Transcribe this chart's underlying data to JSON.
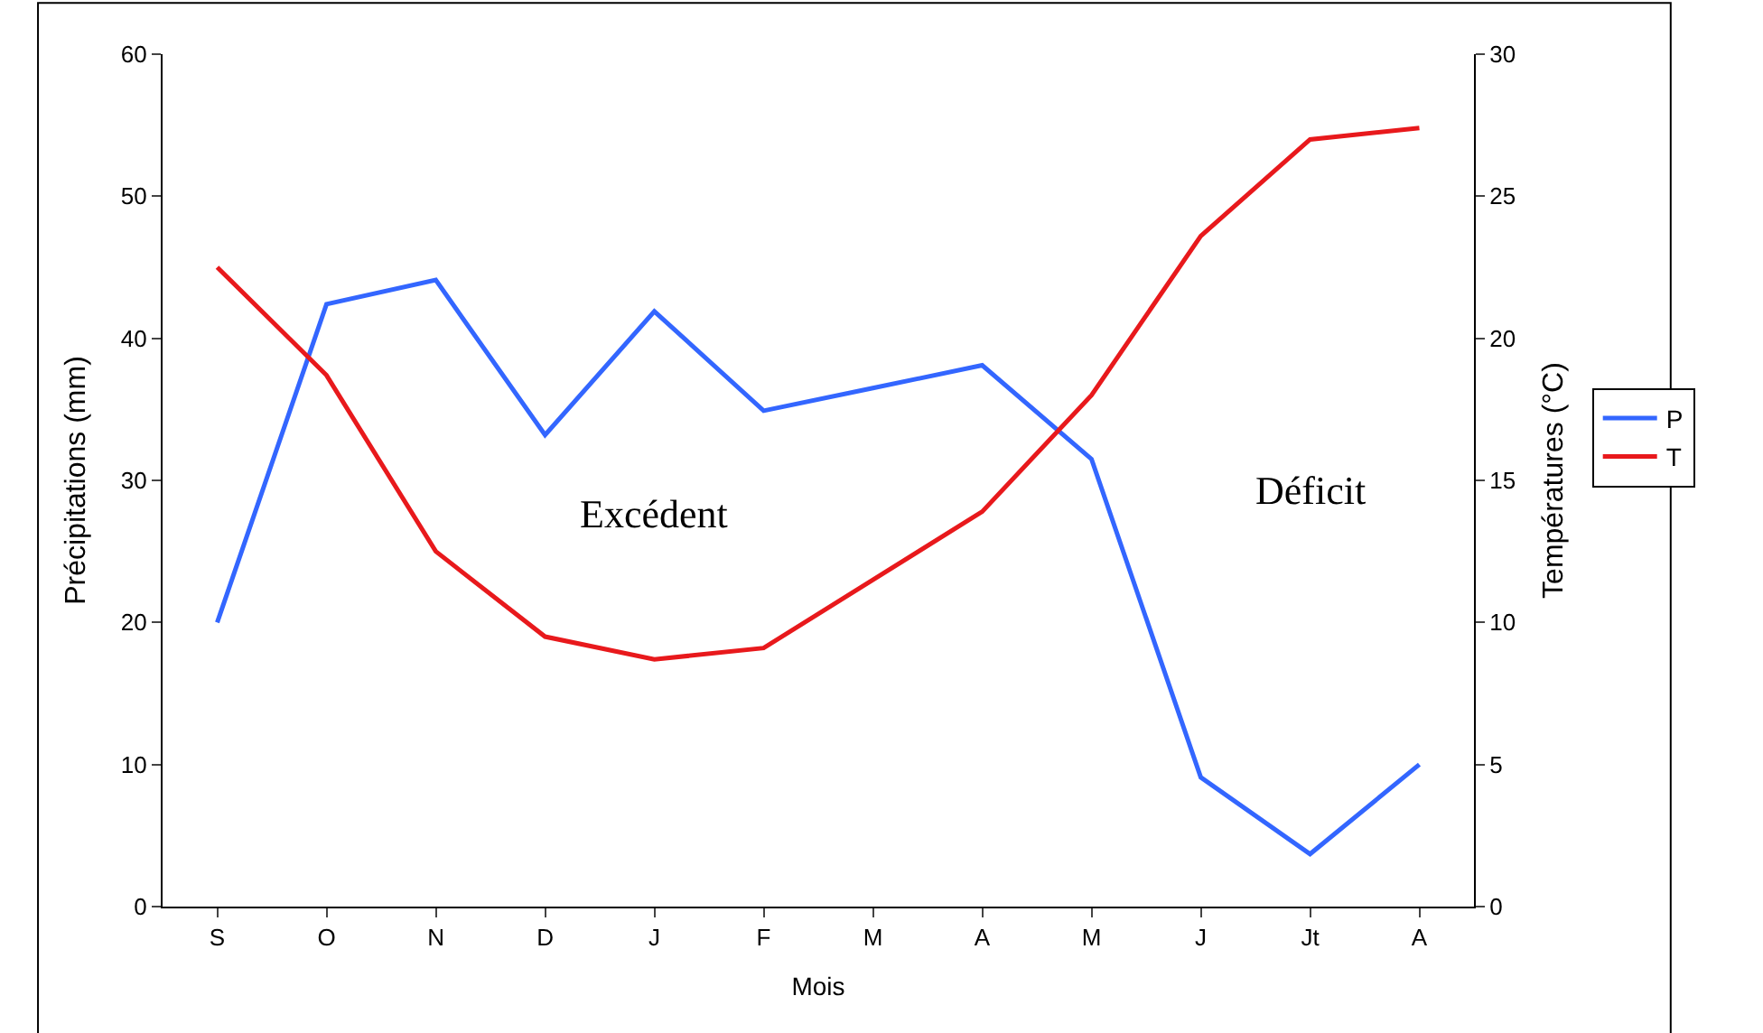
{
  "chart_data": {
    "type": "line",
    "xlabel": "Mois",
    "ylabel": "Précipitations (mm)",
    "y2label": "Températures (°C)",
    "categories": [
      "S",
      "O",
      "N",
      "D",
      "J",
      "F",
      "M",
      "A",
      "M",
      "J",
      "Jt",
      "A"
    ],
    "series": [
      {
        "name": "P",
        "color": "#3366ff",
        "values": [
          20,
          42.4,
          44.1,
          33.2,
          41.9,
          34.9,
          36.5,
          38.1,
          31.5,
          9.1,
          3.7,
          10
        ]
      },
      {
        "name": "T",
        "color": "#e8191c",
        "axis": "y2",
        "values": [
          22.5,
          18.7,
          12.5,
          9.5,
          8.7,
          9.1,
          11.5,
          13.9,
          18,
          23.6,
          27,
          27.4
        ]
      }
    ],
    "ylim": [
      0,
      60
    ],
    "yticks": [
      0,
      10,
      20,
      30,
      40,
      50,
      60
    ],
    "y2lim": [
      0,
      30
    ],
    "y2ticks": [
      0,
      5,
      10,
      15,
      20,
      25,
      30
    ],
    "annotations": [
      "Excédent",
      "Déficit"
    ],
    "legend": "right",
    "marker": "none",
    "line_style": "solid"
  }
}
